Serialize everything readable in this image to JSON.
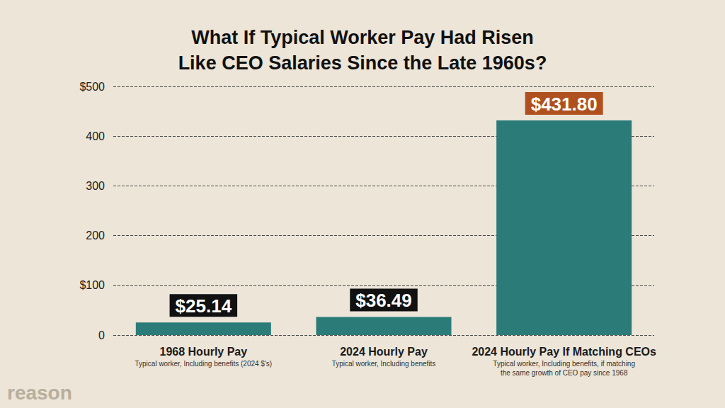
{
  "chart_data": {
    "type": "bar",
    "title": "What If Typical Worker Pay Had Risen Like CEO Salaries Since the Late 1960s?",
    "categories": [
      "1968 Hourly Pay",
      "2024 Hourly Pay",
      "2024 Hourly Pay If Matching CEOs"
    ],
    "category_subtitles": [
      "Typical worker, Including benefits (2024 $'s)",
      "Typical worker, Including benefits",
      "Typical worker, Including benefits, if matching the same growth of CEO pay since 1968"
    ],
    "values": [
      25.14,
      36.49,
      431.8
    ],
    "value_labels": [
      "$25.14",
      "$36.49",
      "$431.80"
    ],
    "color": "#2b7c79",
    "ylim": [
      0,
      500
    ],
    "yticks": [
      0,
      {
        "value": 100,
        "label": "$100"
      },
      200,
      300,
      400,
      {
        "value": 500,
        "label": "$500"
      }
    ],
    "grid": true,
    "data_labels": true,
    "annotations": [
      "reason"
    ]
  }
}
